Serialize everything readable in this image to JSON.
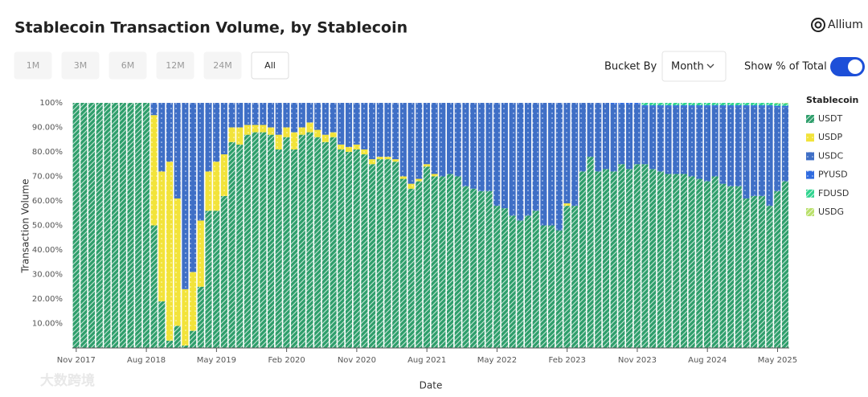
{
  "header": {
    "title": "Stablecoin Transaction Volume, by Stablecoin",
    "brand": "Allium",
    "ranges": [
      "1M",
      "3M",
      "6M",
      "12M",
      "24M",
      "All"
    ],
    "selected_range": "All",
    "bucket_label": "Bucket By",
    "bucket_value": "Month",
    "toggle_label": "Show % of Total",
    "toggle_on": true
  },
  "watermark": "大数跨境",
  "chart_data": {
    "type": "stacked_bar",
    "ylabel": "Transaction Volume",
    "xlabel": "Date",
    "legend_title": "Stablecoin",
    "legend": "right",
    "ylim": [
      0,
      100
    ],
    "yticks": [
      {
        "value": 10,
        "label": "10.00%"
      },
      {
        "value": 20,
        "label": "20.00%"
      },
      {
        "value": 30,
        "label": "30.00%"
      },
      {
        "value": 40,
        "label": "40.00%"
      },
      {
        "value": 50,
        "label": "50.00%"
      },
      {
        "value": 60,
        "label": "60.00%"
      },
      {
        "value": 70,
        "label": "70.00%"
      },
      {
        "value": 80,
        "label": "80.00%"
      },
      {
        "value": 90,
        "label": "90.00%"
      },
      {
        "value": 100,
        "label": "100%"
      }
    ],
    "categories": [
      "Nov 2017",
      null,
      null,
      null,
      null,
      null,
      null,
      null,
      null,
      "Aug 2018",
      null,
      null,
      null,
      null,
      null,
      null,
      null,
      null,
      "May 2019",
      null,
      null,
      null,
      null,
      null,
      null,
      null,
      null,
      "Feb 2020",
      null,
      null,
      null,
      null,
      null,
      null,
      null,
      null,
      "Nov 2020",
      null,
      null,
      null,
      null,
      null,
      null,
      null,
      null,
      "Aug 2021",
      null,
      null,
      null,
      null,
      null,
      null,
      null,
      null,
      "May 2022",
      null,
      null,
      null,
      null,
      null,
      null,
      null,
      null,
      "Feb 2023",
      null,
      null,
      null,
      null,
      null,
      null,
      null,
      null,
      "Nov 2023",
      null,
      null,
      null,
      null,
      null,
      null,
      null,
      null,
      "Aug 2024",
      null,
      null,
      null,
      null,
      null,
      null,
      null,
      null,
      "May 2025",
      null
    ],
    "series": [
      {
        "name": "USDT",
        "color": "#2e9e6b",
        "pattern": "hatch",
        "values": [
          100,
          100,
          100,
          100,
          100,
          100,
          100,
          100,
          100,
          100,
          50,
          19,
          3,
          9,
          1,
          7,
          25,
          56,
          56,
          62,
          84,
          83,
          87,
          88,
          88,
          87,
          81,
          86,
          81,
          87,
          88,
          86,
          84,
          86,
          81,
          80,
          81,
          79,
          75,
          77,
          77,
          76,
          69,
          65,
          68,
          74,
          70,
          70,
          71,
          70,
          66,
          65,
          64,
          64,
          58,
          57,
          54,
          52,
          54,
          56,
          50,
          50,
          48,
          58,
          58,
          72,
          78,
          72,
          73,
          72,
          75,
          73,
          75,
          75,
          73,
          72,
          71,
          71,
          71,
          70,
          69,
          68,
          70,
          67,
          66,
          66,
          61,
          62,
          62,
          58,
          64,
          68
        ]
      },
      {
        "name": "USDP",
        "color": "#f2e33a",
        "pattern": "dots",
        "values": [
          0,
          0,
          0,
          0,
          0,
          0,
          0,
          0,
          0,
          0,
          45,
          53,
          73,
          52,
          23,
          24,
          27,
          16,
          20,
          17,
          6,
          7,
          4,
          3,
          3,
          3,
          6,
          4,
          7,
          3,
          4,
          3,
          3,
          2,
          2,
          2,
          2,
          2,
          2,
          1,
          1,
          1,
          1,
          2,
          1,
          1,
          1,
          0,
          0,
          0,
          0,
          0,
          0,
          0,
          0,
          0,
          0,
          0,
          0,
          0,
          0,
          0,
          0,
          1,
          0,
          0,
          0,
          0,
          0,
          0,
          0,
          0,
          0,
          0,
          0,
          0,
          0,
          0,
          0,
          0,
          0,
          0,
          0,
          0,
          0,
          0,
          0,
          0,
          0,
          0,
          0,
          0
        ]
      },
      {
        "name": "USDC",
        "color": "#3f6fc6",
        "pattern": "dots",
        "values": [
          0,
          0,
          0,
          0,
          0,
          0,
          0,
          0,
          0,
          0,
          5,
          28,
          24,
          39,
          76,
          69,
          48,
          28,
          24,
          21,
          10,
          10,
          9,
          9,
          9,
          10,
          13,
          10,
          12,
          10,
          8,
          11,
          13,
          12,
          17,
          18,
          17,
          19,
          23,
          22,
          22,
          23,
          30,
          33,
          31,
          25,
          29,
          30,
          29,
          30,
          34,
          35,
          36,
          36,
          42,
          43,
          46,
          48,
          46,
          44,
          50,
          50,
          52,
          41,
          42,
          28,
          22,
          28,
          27,
          27.5,
          24.5,
          26.5,
          24.5,
          23.5,
          25.5,
          26.5,
          27.5,
          27.5,
          27.5,
          28.5,
          29.5,
          30.5,
          28.5,
          31.5,
          32.5,
          32.5,
          37.5,
          36.5,
          36.5,
          40.5,
          34.3,
          30.3
        ]
      },
      {
        "name": "PYUSD",
        "color": "#2f6be0",
        "pattern": "dots",
        "values": [
          0,
          0,
          0,
          0,
          0,
          0,
          0,
          0,
          0,
          0,
          0,
          0,
          0,
          0,
          0,
          0,
          0,
          0,
          0,
          0,
          0,
          0,
          0,
          0,
          0,
          0,
          0,
          0,
          0,
          0,
          0,
          0,
          0,
          0,
          0,
          0,
          0,
          0,
          0,
          0,
          0,
          0,
          0,
          0,
          0,
          0,
          0,
          0,
          0,
          0,
          0,
          0,
          0,
          0,
          0,
          0,
          0,
          0,
          0,
          0,
          0,
          0,
          0,
          0,
          0,
          0,
          0,
          0,
          0,
          0.5,
          0.5,
          0.5,
          0.5,
          0.5,
          0.5,
          0.5,
          0.5,
          0.5,
          0.5,
          0.5,
          0.5,
          0.5,
          0.5,
          0.5,
          0.5,
          0.5,
          0.5,
          0.5,
          0.5,
          0.5,
          0.5,
          0.5
        ]
      },
      {
        "name": "FDUSD",
        "color": "#2fd48f",
        "pattern": "hatch",
        "values": [
          0,
          0,
          0,
          0,
          0,
          0,
          0,
          0,
          0,
          0,
          0,
          0,
          0,
          0,
          0,
          0,
          0,
          0,
          0,
          0,
          0,
          0,
          0,
          0,
          0,
          0,
          0,
          0,
          0,
          0,
          0,
          0,
          0,
          0,
          0,
          0,
          0,
          0,
          0,
          0,
          0,
          0,
          0,
          0,
          0,
          0,
          0,
          0,
          0,
          0,
          0,
          0,
          0,
          0,
          0,
          0,
          0,
          0,
          0,
          0,
          0,
          0,
          0,
          0,
          0,
          0,
          0,
          0,
          0,
          0,
          0,
          0,
          0,
          1,
          1,
          1,
          1,
          1,
          1,
          1,
          1,
          1,
          1,
          1,
          1,
          1,
          1,
          1,
          1,
          1,
          1,
          1
        ]
      },
      {
        "name": "USDG",
        "color": "#b9e06a",
        "pattern": "hatch",
        "values": [
          0,
          0,
          0,
          0,
          0,
          0,
          0,
          0,
          0,
          0,
          0,
          0,
          0,
          0,
          0,
          0,
          0,
          0,
          0,
          0,
          0,
          0,
          0,
          0,
          0,
          0,
          0,
          0,
          0,
          0,
          0,
          0,
          0,
          0,
          0,
          0,
          0,
          0,
          0,
          0,
          0,
          0,
          0,
          0,
          0,
          0,
          0,
          0,
          0,
          0,
          0,
          0,
          0,
          0,
          0,
          0,
          0,
          0,
          0,
          0,
          0,
          0,
          0,
          0,
          0,
          0,
          0,
          0,
          0,
          0,
          0,
          0,
          0,
          0,
          0,
          0,
          0,
          0,
          0,
          0,
          0,
          0,
          0,
          0,
          0,
          0,
          0,
          0,
          0,
          0,
          0.2,
          0.2
        ]
      }
    ]
  }
}
